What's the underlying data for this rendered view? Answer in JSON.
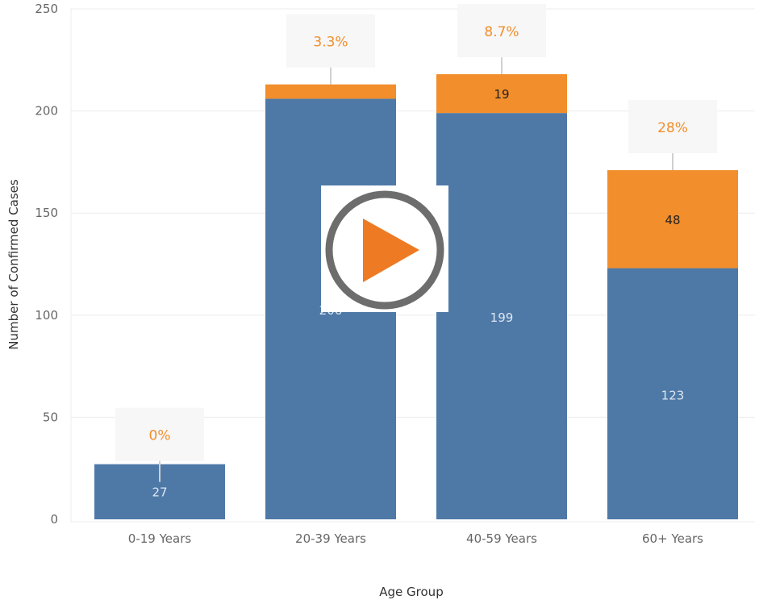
{
  "colors": {
    "base": "#4e79a7",
    "top": "#f28e2b",
    "grid": "#ececec",
    "callout_bg": "#f7f7f7",
    "callout_stem": "#d0d0d0",
    "base_label": "#dde6f0",
    "top_label": "#222222",
    "pct_label": "#f28e2b",
    "play_ring": "#6d6d6d",
    "play_triangle": "#ee7a23"
  },
  "chart_data": {
    "type": "bar",
    "stacked": true,
    "title": "",
    "xlabel": "Age Group",
    "ylabel": "Number of Confirmed Cases",
    "ylim": [
      0,
      250
    ],
    "yticks": [
      0,
      50,
      100,
      150,
      200,
      250
    ],
    "grid": true,
    "categories": [
      "0-19 Years",
      "20-39 Years",
      "40-59 Years",
      "60+ Years"
    ],
    "series": [
      {
        "values": [
          27,
          206,
          199,
          123
        ],
        "labels": [
          "27",
          "206",
          "199",
          "123"
        ]
      },
      {
        "values": [
          0,
          7,
          19,
          48
        ],
        "labels": [
          "",
          "",
          "19",
          "48"
        ]
      }
    ],
    "annotations": [
      "0%",
      "3.3%",
      "8.7%",
      "28%"
    ]
  },
  "overlay": {
    "icon": "play-icon"
  }
}
